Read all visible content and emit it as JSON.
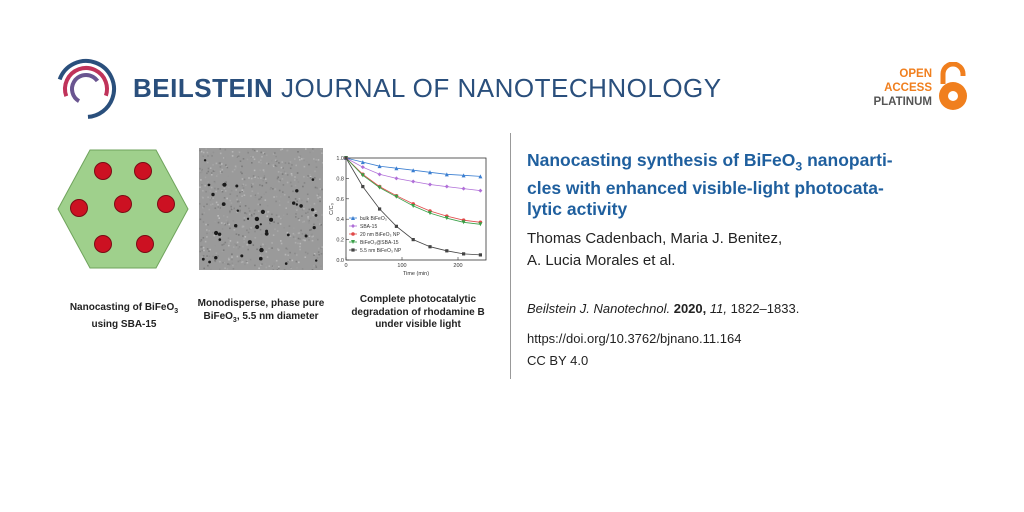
{
  "header": {
    "journal_bold": "BEILSTEIN",
    "journal_rest": "JOURNAL OF NANOTECHNOLOGY",
    "open_access": [
      "OPEN",
      "ACCESS",
      "PLATINUM"
    ]
  },
  "graphic": {
    "caption1": {
      "line1_pre": "Nanocasting of BiFeO",
      "sub": "3",
      "line2": "using SBA-15"
    },
    "caption2": {
      "line1": "Monodisperse, phase pure",
      "pre": "BiFeO",
      "sub": "3",
      "post": ", 5.5 nm diameter"
    },
    "caption3": {
      "line1": "Complete photocatalytic",
      "line2": "degradation of rhodamine B",
      "line3": "under visible light"
    }
  },
  "chart_data": {
    "type": "line",
    "xlabel": "Time (min)",
    "ylabel": "C/C₀",
    "xlim": [
      0,
      250
    ],
    "ylim": [
      0,
      1.0
    ],
    "xticks": [
      0,
      100,
      200
    ],
    "yticks": [
      0.0,
      0.2,
      0.4,
      0.6,
      0.8,
      1.0
    ],
    "x": [
      0,
      30,
      60,
      90,
      120,
      150,
      180,
      210,
      240
    ],
    "legend_position": "bottom-left",
    "series": [
      {
        "name": "bulk BiFeO₃",
        "color": "#3b7fd1",
        "marker": "triangle",
        "values": [
          1.0,
          0.96,
          0.92,
          0.9,
          0.88,
          0.86,
          0.84,
          0.83,
          0.82
        ]
      },
      {
        "name": "SBA-15",
        "color": "#b06fd8",
        "marker": "diamond",
        "values": [
          1.0,
          0.91,
          0.84,
          0.8,
          0.77,
          0.74,
          0.72,
          0.7,
          0.68
        ]
      },
      {
        "name": "20 nm BiFeO₃ NP",
        "color": "#e04848",
        "marker": "circle",
        "values": [
          1.0,
          0.84,
          0.72,
          0.63,
          0.55,
          0.48,
          0.43,
          0.39,
          0.37
        ]
      },
      {
        "name": "BiFeO₃@SBA-15",
        "color": "#3aa048",
        "marker": "triangle-down",
        "values": [
          1.0,
          0.83,
          0.71,
          0.62,
          0.53,
          0.46,
          0.41,
          0.37,
          0.35
        ]
      },
      {
        "name": "5.5 nm BiFeO₃ NP",
        "color": "#444444",
        "marker": "square",
        "values": [
          1.0,
          0.72,
          0.5,
          0.33,
          0.2,
          0.13,
          0.09,
          0.06,
          0.05
        ]
      }
    ]
  },
  "article": {
    "title_pre": "Nanocasting synthesis of BiFeO",
    "title_sub": "3",
    "title_post1": " nanoparti-",
    "title_line2": "cles with enhanced visible-light photocata-",
    "title_line3": "lytic activity",
    "authors_line1": "Thomas Cadenbach, Maria J. Benitez,",
    "authors_line2": "A. Lucia Morales et al.",
    "citation_journal": "Beilstein J. Nanotechnol.",
    "citation_year": "2020,",
    "citation_volume": "11,",
    "citation_pages": "1822–1833.",
    "doi": "https://doi.org/10.3762/bjnano.11.164",
    "license": "CC BY 4.0"
  },
  "colors": {
    "title_blue": "#1f5f9e",
    "journal_blue": "#2a4f7c",
    "oa_orange": "#f07f1e",
    "hex_green": "#9fd08c",
    "pore_red": "#cc1122"
  }
}
